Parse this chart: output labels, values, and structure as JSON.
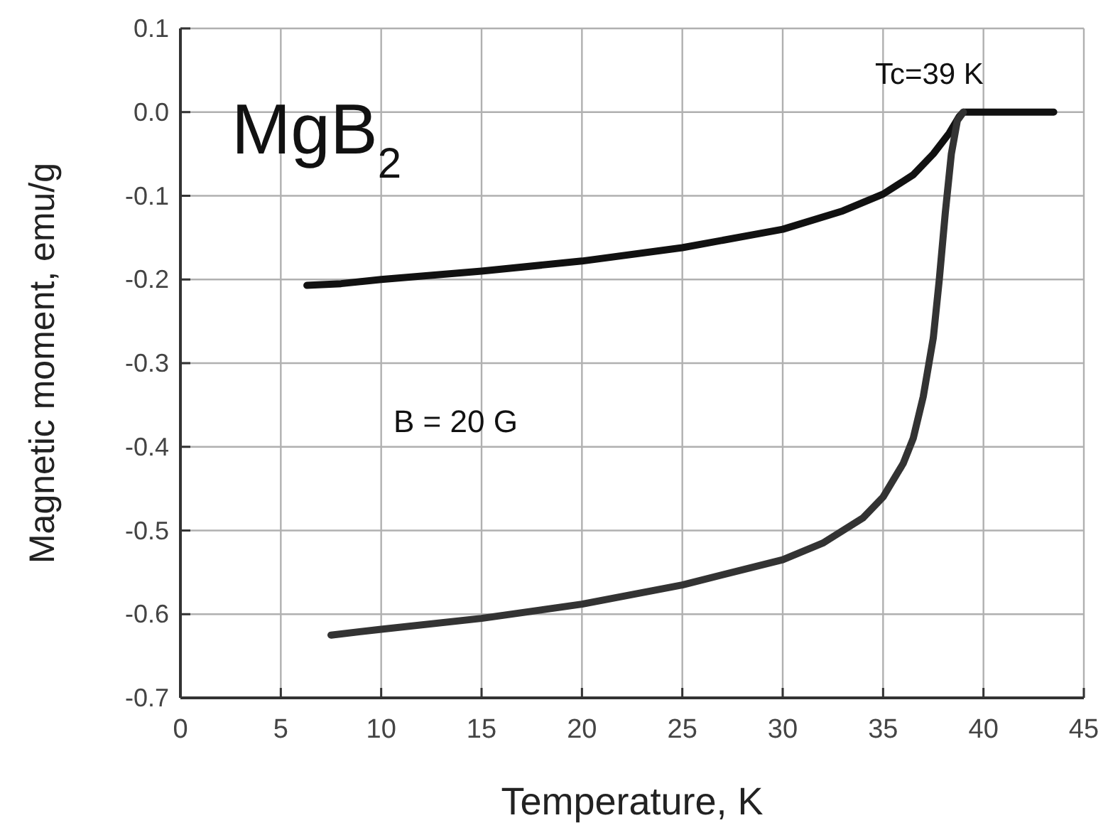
{
  "chart_data": {
    "type": "line",
    "xlabel": "Temperature, K",
    "ylabel": "Magnetic moment, emu/g",
    "xlim": [
      0,
      45
    ],
    "xticks": [
      0,
      5,
      10,
      15,
      20,
      25,
      30,
      35,
      40,
      45
    ],
    "ylim": [
      -0.7,
      0.1
    ],
    "yticks": [
      0.1,
      {
        "value": 0,
        "label": "0.0"
      },
      -0.1,
      -0.2,
      -0.3,
      -0.4,
      -0.5,
      -0.6,
      -0.7
    ],
    "grid": true,
    "marker": "none",
    "line_style": "solid",
    "annotations": [
      "MgB$_{2}$",
      {
        "text": "Tc=39 K",
        "x": 39,
        "y": 0
      },
      "B = 20 G"
    ],
    "series": [
      {
        "color": "#111111",
        "x": [
          6.3,
          8,
          10,
          15,
          20,
          25,
          30,
          33,
          35,
          36.5,
          37.5,
          38.3,
          38.8,
          39,
          40,
          43.5
        ],
        "values": [
          -0.207,
          -0.205,
          -0.2,
          -0.19,
          -0.178,
          -0.162,
          -0.14,
          -0.118,
          -0.098,
          -0.075,
          -0.05,
          -0.025,
          -0.005,
          0,
          0,
          0
        ]
      },
      {
        "color": "#333333",
        "x": [
          7.5,
          10,
          15,
          20,
          25,
          30,
          32,
          34,
          35,
          36,
          36.5,
          37,
          37.5,
          37.8,
          38.1,
          38.4,
          38.7,
          39
        ],
        "values": [
          -0.625,
          -0.618,
          -0.605,
          -0.588,
          -0.565,
          -0.535,
          -0.515,
          -0.485,
          -0.46,
          -0.42,
          -0.39,
          -0.34,
          -0.27,
          -0.2,
          -0.12,
          -0.05,
          -0.01,
          0
        ]
      }
    ]
  }
}
